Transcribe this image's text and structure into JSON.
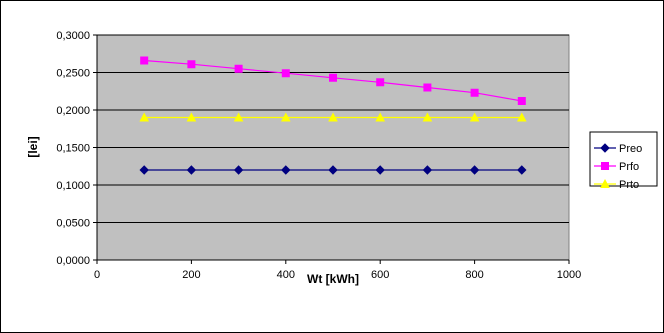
{
  "colors": {
    "plot_background": "#c0c0c0",
    "grid": "#000000",
    "frame": "#000000",
    "Preo": "#000080",
    "Prfo": "#ff00ff",
    "Prto": "#ffff00"
  },
  "chart_data": {
    "type": "line",
    "title": "",
    "xlabel": "Wt [kWh]",
    "ylabel": "[lei]",
    "xlim": [
      0,
      1000
    ],
    "ylim": [
      0,
      0.3
    ],
    "x_ticks": [
      "0",
      "200",
      "400",
      "600",
      "800",
      "1000"
    ],
    "y_ticks": [
      "0,0000",
      "0,0500",
      "0,1000",
      "0,1500",
      "0,2000",
      "0,2500",
      "0,3000"
    ],
    "grid": "horizontal",
    "legend_position": "right",
    "x": [
      100,
      200,
      300,
      400,
      500,
      600,
      700,
      800,
      900
    ],
    "series": [
      {
        "name": "Preo",
        "marker": "diamond",
        "color": "#000080",
        "values": [
          0.12,
          0.12,
          0.12,
          0.12,
          0.12,
          0.12,
          0.12,
          0.12,
          0.12
        ]
      },
      {
        "name": "Prfo",
        "marker": "square",
        "color": "#ff00ff",
        "values": [
          0.266,
          0.261,
          0.255,
          0.249,
          0.243,
          0.237,
          0.23,
          0.223,
          0.212
        ]
      },
      {
        "name": "Prto",
        "marker": "triangle",
        "color": "#ffff00",
        "values": [
          0.19,
          0.19,
          0.19,
          0.19,
          0.19,
          0.19,
          0.19,
          0.19,
          0.19
        ]
      }
    ]
  }
}
